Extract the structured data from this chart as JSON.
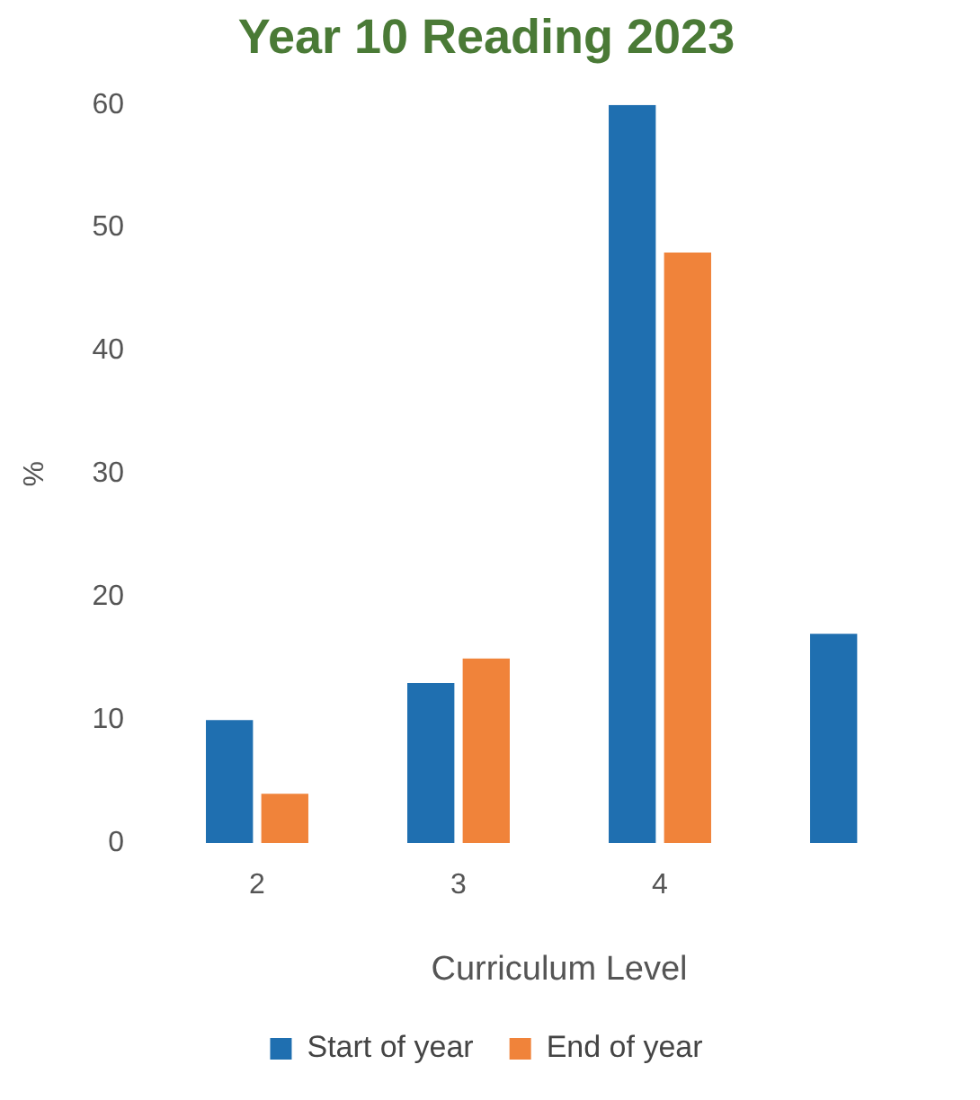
{
  "chart_data": {
    "type": "bar",
    "title": "Year 10 Reading 2023",
    "xlabel": "Curriculum Level",
    "ylabel": "%",
    "categories": [
      "2",
      "3",
      "4",
      null
    ],
    "series": [
      {
        "name": "Start of year",
        "color": "#1f6fb0",
        "values": [
          10,
          13,
          60,
          17
        ]
      },
      {
        "name": "End of year",
        "color": "#f0833a",
        "values": [
          4,
          15,
          48,
          null
        ]
      }
    ],
    "ylim": [
      0,
      60
    ],
    "yticks": [
      0,
      10,
      20,
      30,
      40,
      50,
      60
    ],
    "grid": false,
    "legend": "bottom"
  }
}
